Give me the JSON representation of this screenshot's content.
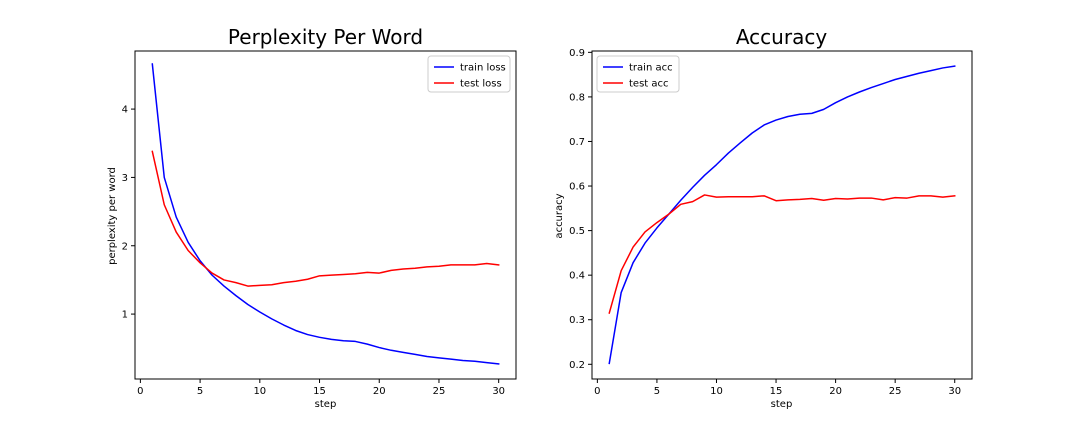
{
  "chart_data": [
    {
      "type": "line",
      "title": "Perplexity Per Word",
      "xlabel": "step",
      "ylabel": "perplexity per word",
      "xlim": [
        -0.45,
        31.45
      ],
      "ylim": [
        0.05,
        4.85
      ],
      "xticks": [
        0,
        5,
        10,
        15,
        20,
        25,
        30
      ],
      "yticks": [
        1,
        2,
        3,
        4
      ],
      "grid": false,
      "legend_position": "top-right",
      "x": [
        1,
        2,
        3,
        4,
        5,
        6,
        7,
        8,
        9,
        10,
        11,
        12,
        13,
        14,
        15,
        16,
        17,
        18,
        19,
        20,
        21,
        22,
        23,
        24,
        25,
        26,
        27,
        28,
        29,
        30
      ],
      "series": [
        {
          "name": "train loss",
          "color": "#0000ff",
          "values": [
            4.66,
            3.0,
            2.42,
            2.05,
            1.78,
            1.57,
            1.41,
            1.27,
            1.14,
            1.03,
            0.93,
            0.84,
            0.76,
            0.7,
            0.66,
            0.63,
            0.61,
            0.6,
            0.56,
            0.51,
            0.47,
            0.44,
            0.41,
            0.38,
            0.36,
            0.34,
            0.32,
            0.31,
            0.29,
            0.27
          ]
        },
        {
          "name": "test loss",
          "color": "#ff0000",
          "values": [
            3.38,
            2.6,
            2.2,
            1.93,
            1.75,
            1.6,
            1.5,
            1.46,
            1.41,
            1.42,
            1.43,
            1.46,
            1.48,
            1.51,
            1.56,
            1.57,
            1.58,
            1.59,
            1.61,
            1.6,
            1.64,
            1.66,
            1.67,
            1.69,
            1.7,
            1.72,
            1.72,
            1.72,
            1.74,
            1.72
          ]
        }
      ]
    },
    {
      "type": "line",
      "title": "Accuracy",
      "xlabel": "step",
      "ylabel": "accuracy",
      "xlim": [
        -0.45,
        31.45
      ],
      "ylim": [
        0.167,
        0.903
      ],
      "xticks": [
        0,
        5,
        10,
        15,
        20,
        25,
        30
      ],
      "yticks": [
        0.2,
        0.3,
        0.4,
        0.5,
        0.6,
        0.7,
        0.8,
        0.9
      ],
      "grid": false,
      "legend_position": "top-left",
      "x": [
        1,
        2,
        3,
        4,
        5,
        6,
        7,
        8,
        9,
        10,
        11,
        12,
        13,
        14,
        15,
        16,
        17,
        18,
        19,
        20,
        21,
        22,
        23,
        24,
        25,
        26,
        27,
        28,
        29,
        30
      ],
      "series": [
        {
          "name": "train acc",
          "color": "#0000ff",
          "values": [
            0.202,
            0.361,
            0.428,
            0.472,
            0.506,
            0.537,
            0.568,
            0.597,
            0.624,
            0.648,
            0.674,
            0.697,
            0.719,
            0.737,
            0.748,
            0.756,
            0.761,
            0.763,
            0.772,
            0.787,
            0.8,
            0.811,
            0.821,
            0.83,
            0.839,
            0.846,
            0.853,
            0.859,
            0.865,
            0.869
          ]
        },
        {
          "name": "test acc",
          "color": "#ff0000",
          "values": [
            0.315,
            0.41,
            0.463,
            0.497,
            0.518,
            0.537,
            0.559,
            0.565,
            0.58,
            0.575,
            0.576,
            0.576,
            0.576,
            0.578,
            0.567,
            0.569,
            0.57,
            0.572,
            0.568,
            0.572,
            0.571,
            0.573,
            0.573,
            0.569,
            0.574,
            0.573,
            0.578,
            0.578,
            0.575,
            0.578
          ]
        }
      ]
    }
  ]
}
